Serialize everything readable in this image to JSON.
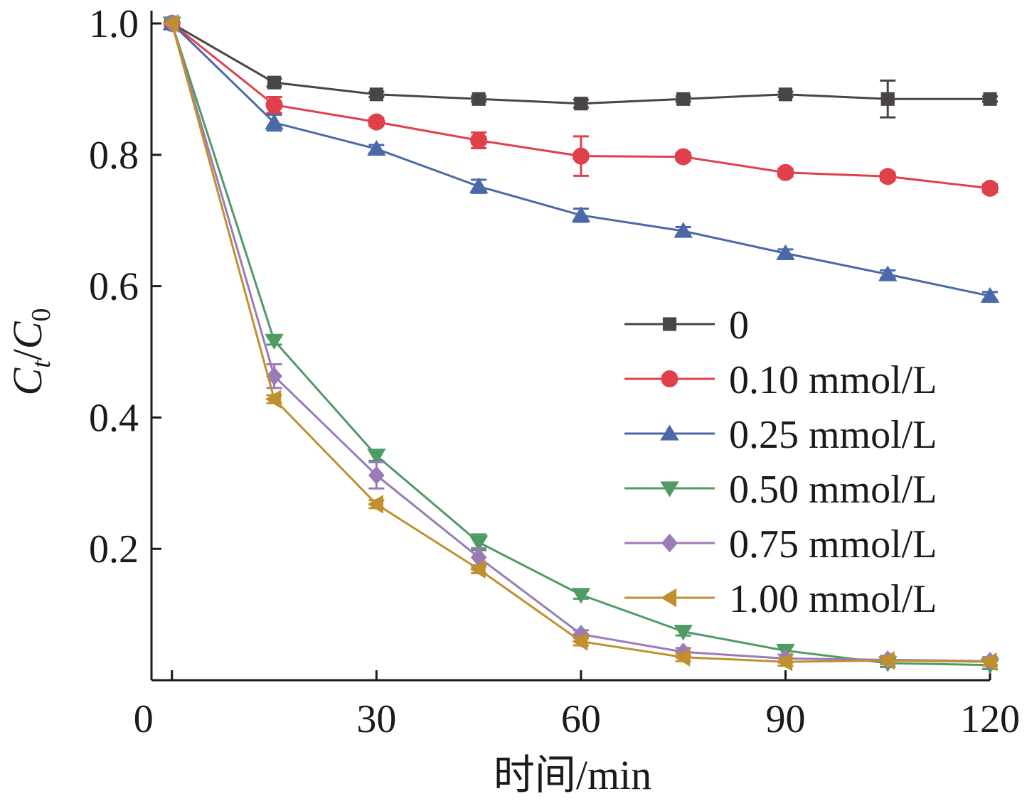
{
  "chart_data": {
    "type": "line",
    "xlabel": "时间/min",
    "ylabel_main": "C",
    "ylabel_sub1": "t",
    "ylabel_slash": "/",
    "ylabel_main2": "C",
    "ylabel_sub2": "0",
    "xlim": [
      -3,
      120
    ],
    "ylim": [
      0,
      1.0
    ],
    "xticks": [
      0,
      30,
      60,
      90,
      120
    ],
    "xtick_labels": [
      "0",
      "30",
      "60",
      "90",
      "120"
    ],
    "yticks": [
      0.2,
      0.4,
      0.6,
      0.8,
      1.0
    ],
    "ytick_labels": [
      "0.2",
      "0.4",
      "0.6",
      "0.8",
      "1.0"
    ],
    "x": [
      0,
      15,
      30,
      45,
      60,
      75,
      90,
      105,
      120
    ],
    "legend_position": "right-center",
    "series": [
      {
        "name": "0",
        "color": "#4a4545",
        "marker": "square",
        "values": [
          1.0,
          0.91,
          0.892,
          0.885,
          0.878,
          0.885,
          0.892,
          0.885,
          0.885
        ],
        "errors": [
          0,
          0.006,
          0.004,
          0.004,
          0.006,
          0.004,
          0.004,
          0.028,
          0.004
        ]
      },
      {
        "name": "0.10 mmol/L",
        "color": "#e0404a",
        "marker": "circle",
        "values": [
          1.0,
          0.876,
          0.85,
          0.822,
          0.798,
          0.797,
          0.773,
          0.767,
          0.749
        ],
        "errors": [
          0,
          0.012,
          0.006,
          0.012,
          0.03,
          0.006,
          0.006,
          0.006,
          0.006
        ]
      },
      {
        "name": "0.25 mmol/L",
        "color": "#4b69a8",
        "marker": "triangle-up",
        "values": [
          1.0,
          0.849,
          0.809,
          0.752,
          0.708,
          0.684,
          0.65,
          0.618,
          0.585
        ],
        "errors": [
          0,
          0.012,
          0.006,
          0.01,
          0.01,
          0.006,
          0.006,
          0.006,
          0.006
        ]
      },
      {
        "name": "0.50 mmol/L",
        "color": "#4f9b66",
        "marker": "triangle-down",
        "values": [
          1.0,
          0.517,
          0.342,
          0.21,
          0.13,
          0.074,
          0.045,
          0.026,
          0.023
        ],
        "errors": [
          0,
          0.006,
          0.008,
          0.012,
          0.006,
          0.006,
          0.006,
          0.006,
          0.006
        ]
      },
      {
        "name": "0.75 mmol/L",
        "color": "#9a7bb8",
        "marker": "diamond",
        "values": [
          1.0,
          0.463,
          0.312,
          0.187,
          0.07,
          0.043,
          0.033,
          0.031,
          0.029
        ],
        "errors": [
          0,
          0.018,
          0.02,
          0.014,
          0.006,
          0.006,
          0.006,
          0.006,
          0.006
        ]
      },
      {
        "name": "1.00 mmol/L",
        "color": "#c0902e",
        "marker": "triangle-left",
        "values": [
          1.0,
          0.428,
          0.268,
          0.169,
          0.059,
          0.035,
          0.028,
          0.03,
          0.028
        ],
        "errors": [
          0,
          0.006,
          0.006,
          0.006,
          0.006,
          0.006,
          0.006,
          0.006,
          0.006
        ]
      }
    ]
  }
}
